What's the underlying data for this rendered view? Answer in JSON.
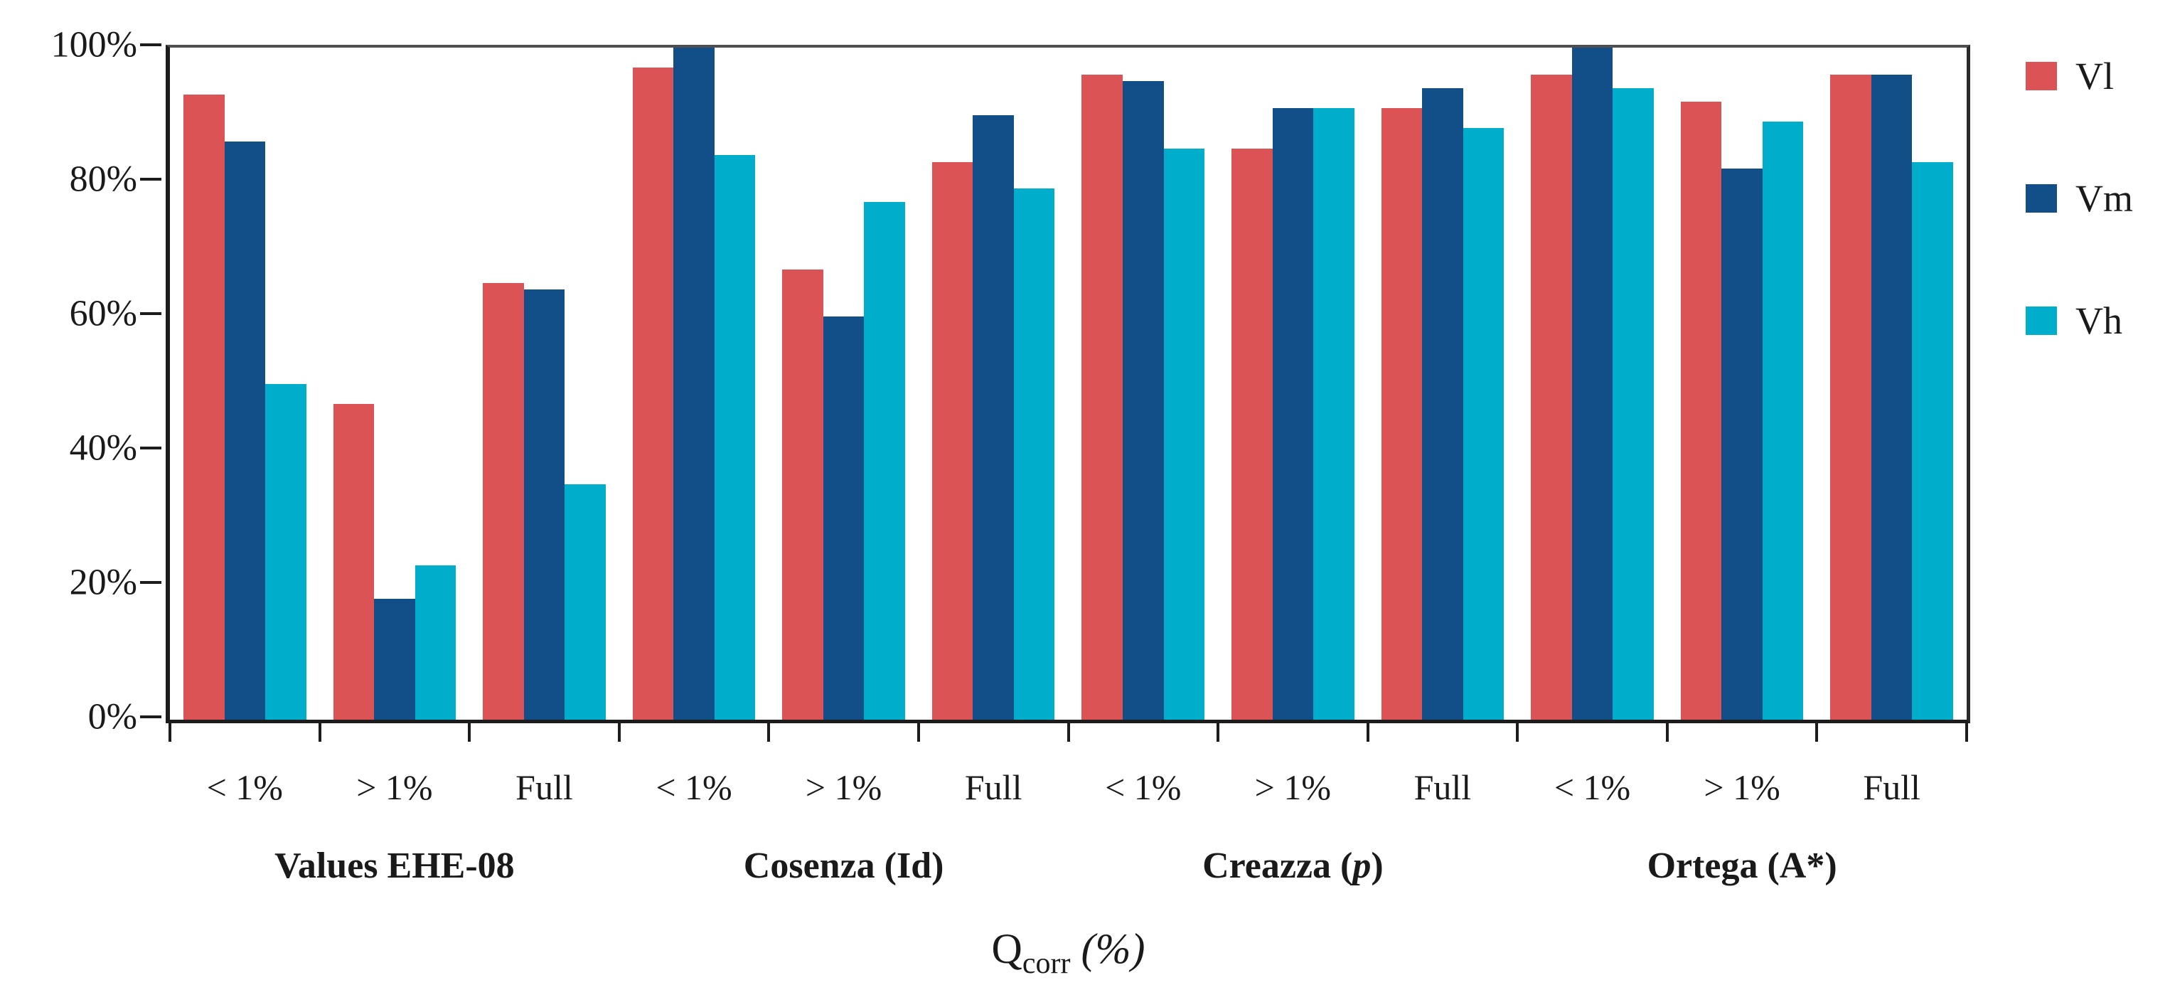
{
  "chart_data": {
    "type": "bar",
    "title": "",
    "xlabel": {
      "main": "Q",
      "sub": "corr",
      "unit": " (%)"
    },
    "ylabel": "",
    "ylim": [
      0,
      100
    ],
    "grid": false,
    "legend_position": "right",
    "yticks": [
      {
        "value": 0,
        "label": "0%"
      },
      {
        "value": 20,
        "label": "20%"
      },
      {
        "value": 40,
        "label": "40%"
      },
      {
        "value": 60,
        "label": "60%"
      },
      {
        "value": 80,
        "label": "80%"
      },
      {
        "value": 100,
        "label": "100%"
      }
    ],
    "series": [
      {
        "name": "Vl",
        "color": "#DC5356"
      },
      {
        "name": "Vm",
        "color": "#124E88"
      },
      {
        "name": "Vh",
        "color": "#00ADCA"
      }
    ],
    "groups": [
      {
        "label_prefix": "Values EHE-08",
        "label_italic": "",
        "label_suffix": "",
        "clusters": [
          {
            "category": "< 1%",
            "values": [
              93,
              86,
              50
            ]
          },
          {
            "category": "> 1%",
            "values": [
              47,
              18,
              23
            ]
          },
          {
            "category": "Full",
            "values": [
              65,
              64,
              35
            ]
          }
        ]
      },
      {
        "label_prefix": "Cosenza (Id)",
        "label_italic": "",
        "label_suffix": "",
        "clusters": [
          {
            "category": "< 1%",
            "values": [
              97,
              100,
              84
            ]
          },
          {
            "category": "> 1%",
            "values": [
              67,
              60,
              77
            ]
          },
          {
            "category": "Full",
            "values": [
              83,
              90,
              79
            ]
          }
        ]
      },
      {
        "label_prefix": "Creazza (",
        "label_italic": "p",
        "label_suffix": ")",
        "clusters": [
          {
            "category": "< 1%",
            "values": [
              96,
              95,
              85
            ]
          },
          {
            "category": "> 1%",
            "values": [
              85,
              91,
              91
            ]
          },
          {
            "category": "Full",
            "values": [
              91,
              94,
              88
            ]
          }
        ]
      },
      {
        "label_prefix": "Ortega (A*)",
        "label_italic": "",
        "label_suffix": "",
        "clusters": [
          {
            "category": "< 1%",
            "values": [
              96,
              100,
              94
            ]
          },
          {
            "category": "> 1%",
            "values": [
              92,
              82,
              89
            ]
          },
          {
            "category": "Full",
            "values": [
              96,
              96,
              83
            ]
          }
        ]
      }
    ]
  }
}
